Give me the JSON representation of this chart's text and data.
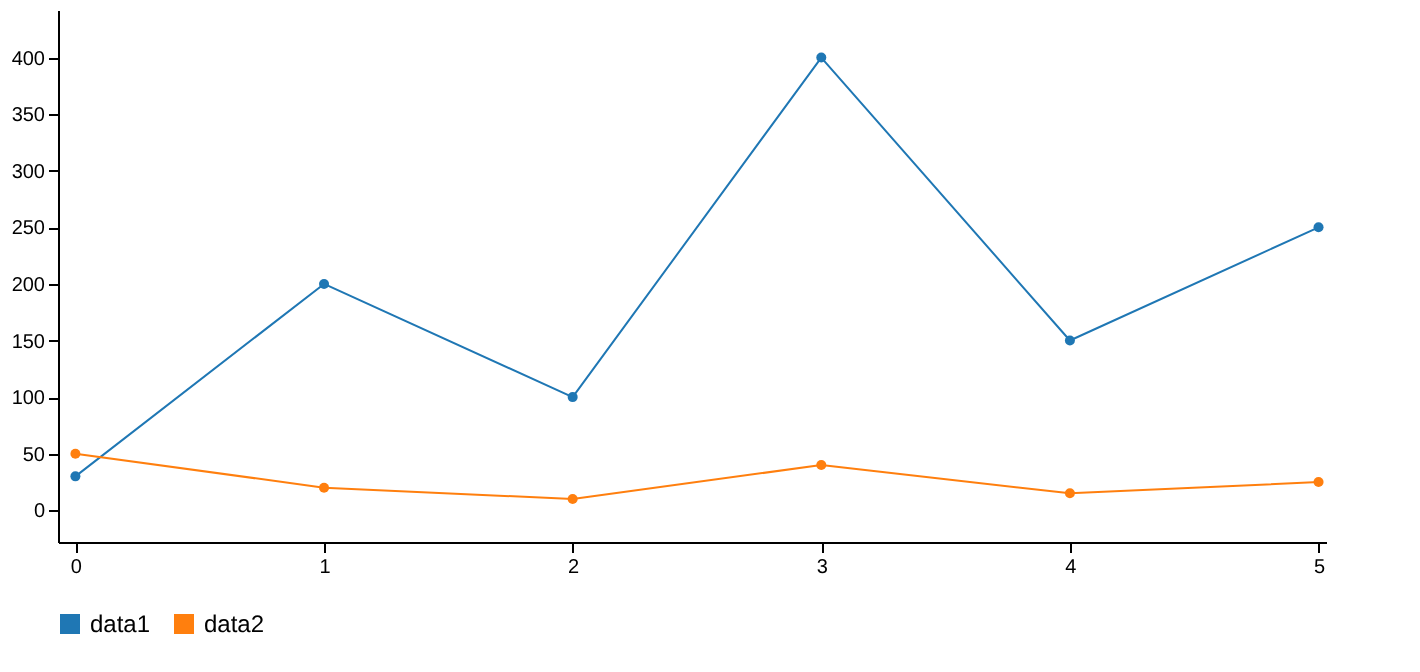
{
  "chart_data": {
    "type": "line",
    "x": [
      0,
      1,
      2,
      3,
      4,
      5
    ],
    "series": [
      {
        "name": "data1",
        "color": "#1f77b4",
        "values": [
          30,
          200,
          100,
          400,
          150,
          250
        ]
      },
      {
        "name": "data2",
        "color": "#ff7f0e",
        "values": [
          50,
          20,
          10,
          40,
          15,
          25
        ]
      }
    ],
    "xlim": [
      -0.07,
      5.03
    ],
    "xticks": [
      0,
      1,
      2,
      3,
      4,
      5
    ],
    "ylim": [
      -28,
      442
    ],
    "yticks": [
      0,
      50,
      100,
      150,
      200,
      250,
      300,
      350,
      400
    ],
    "grid": false,
    "legend": "bottom",
    "marker": "circle",
    "line_style": "solid"
  }
}
